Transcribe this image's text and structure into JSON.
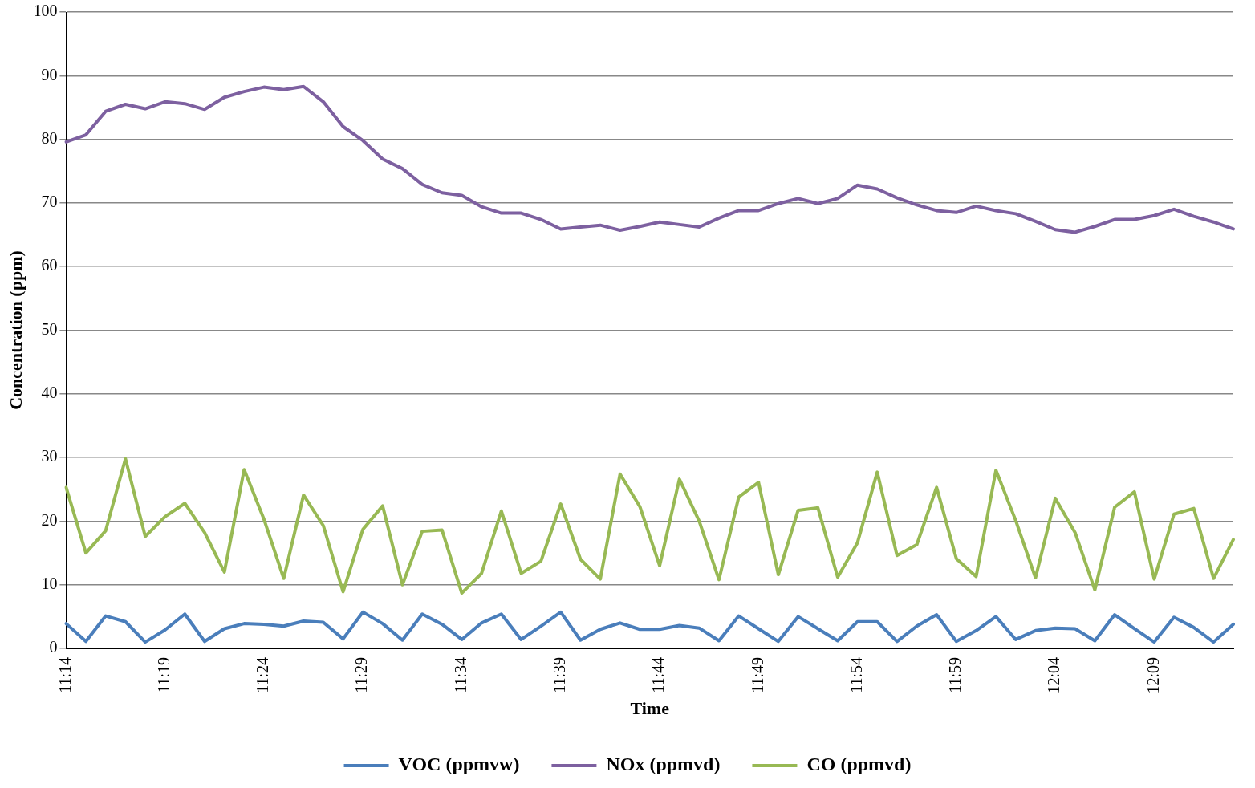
{
  "chart_data": {
    "type": "line",
    "xlabel": "Time",
    "ylabel": "Concentration (ppm)",
    "categories": [
      "11:14",
      null,
      null,
      null,
      null,
      "11:19",
      null,
      null,
      null,
      null,
      "11:24",
      null,
      null,
      null,
      null,
      "11:29",
      null,
      null,
      null,
      null,
      "11:34",
      null,
      null,
      null,
      null,
      "11:39",
      null,
      null,
      null,
      null,
      "11:44",
      null,
      null,
      null,
      null,
      "11:49",
      null,
      null,
      null,
      null,
      "11:54",
      null,
      null,
      null,
      null,
      "11:59",
      null,
      null,
      null,
      null,
      "12:04",
      null,
      null,
      null,
      null,
      "12:09",
      null,
      null,
      null,
      null
    ],
    "series": [
      {
        "name": "VOC (ppmvw)",
        "color": "#4a7ebb",
        "values": [
          3.9,
          1.1,
          5.1,
          4.2,
          1,
          2.9,
          5.4,
          1.1,
          3.1,
          3.9,
          3.8,
          3.5,
          4.3,
          4.1,
          1.5,
          5.7,
          3.9,
          1.3,
          5.4,
          3.8,
          1.4,
          4,
          5.4,
          1.4,
          3.5,
          5.7,
          1.3,
          3,
          4,
          3,
          3,
          3.6,
          3.2,
          1.2,
          5.1,
          3.1,
          1.1,
          5,
          3.1,
          1.2,
          4.2,
          4.2,
          1.1,
          3.5,
          5.3,
          1.1,
          2.8,
          5,
          1.4,
          2.8,
          3.2,
          3.1,
          1.2,
          5.3,
          3.1,
          1,
          4.9,
          3.3,
          1,
          3.8
        ]
      },
      {
        "name": "NOx (ppmvd)",
        "color": "#7d60a0",
        "values": [
          79.6,
          80.7,
          84.4,
          85.5,
          84.8,
          85.9,
          85.6,
          84.7,
          86.6,
          87.5,
          88.2,
          87.8,
          88.3,
          85.9,
          82,
          79.8,
          76.9,
          75.4,
          72.9,
          71.6,
          71.2,
          69.4,
          68.4,
          68.4,
          67.4,
          65.9,
          66.2,
          66.5,
          65.7,
          66.3,
          67,
          66.6,
          66.2,
          67.6,
          68.8,
          68.8,
          69.9,
          70.7,
          69.9,
          70.7,
          72.8,
          72.2,
          70.8,
          69.7,
          68.8,
          68.5,
          69.5,
          68.8,
          68.3,
          67.1,
          65.8,
          65.4,
          66.3,
          67.4,
          67.4,
          68,
          69,
          67.9,
          67,
          65.9
        ]
      },
      {
        "name": "CO (ppmvd)",
        "color": "#98b954",
        "values": [
          25.3,
          15,
          18.5,
          29.8,
          17.6,
          20.7,
          22.8,
          18.2,
          12,
          28.1,
          20.3,
          11,
          24.1,
          19.3,
          8.9,
          18.7,
          22.4,
          10,
          18.4,
          18.6,
          8.7,
          11.8,
          21.6,
          11.8,
          13.7,
          22.7,
          14,
          10.9,
          27.4,
          22.3,
          13,
          26.6,
          20,
          10.8,
          23.8,
          26.1,
          11.6,
          21.7,
          22.1,
          11.2,
          16.6,
          27.7,
          14.6,
          16.3,
          25.3,
          14.1,
          11.3,
          28,
          20.1,
          11.1,
          23.6,
          18.2,
          9.2,
          22.2,
          24.6,
          10.9,
          21.1,
          22,
          11,
          17.1
        ]
      }
    ],
    "ylim": [
      0,
      100
    ],
    "yticks": [
      0,
      10,
      20,
      30,
      40,
      50,
      60,
      70,
      80,
      90,
      100
    ],
    "grid": "y",
    "legend": "bottom",
    "marker": "none",
    "line_style": "solid"
  }
}
